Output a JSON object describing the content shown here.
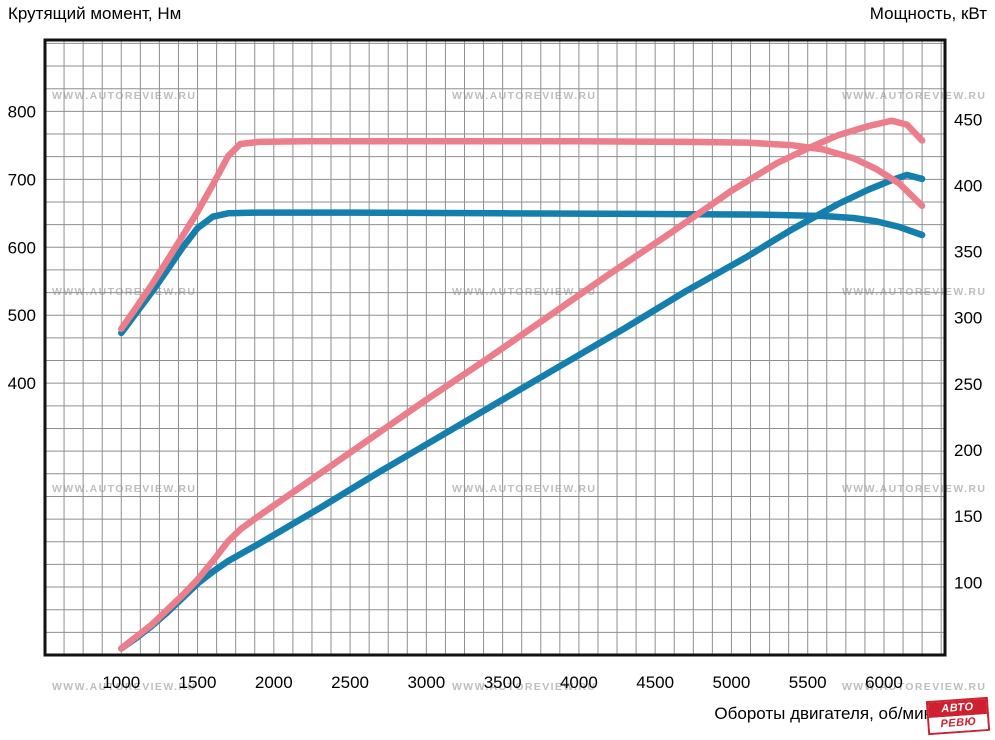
{
  "watermark": "WWW.AUTOREVIEW.RU",
  "logo": {
    "line1": "АВТО",
    "line2": "РЕВЮ"
  },
  "colors": {
    "pink": "#ec7e8c",
    "blue": "#147fad",
    "grid": "#8f8f8f",
    "frame": "#111111",
    "text": "#000000"
  },
  "chart_data": {
    "type": "line",
    "title": "",
    "x_axis": {
      "label": "Обороты двигателя, об/мин",
      "ticks": [
        1000,
        1500,
        2000,
        2500,
        3000,
        3500,
        4000,
        4500,
        5000,
        5500,
        6000
      ],
      "range": [
        500,
        6400
      ],
      "grid_step": 125
    },
    "y_left": {
      "label": "Крутящий момент, Нм",
      "ticks": [
        400,
        500,
        600,
        700,
        800
      ],
      "range": [
        0,
        905
      ],
      "grid_step": 33.333
    },
    "y_right": {
      "label": "Мощность, кВт",
      "ticks": [
        100,
        150,
        200,
        250,
        300,
        350,
        400,
        450
      ],
      "range": [
        45,
        510
      ]
    },
    "grid": true,
    "legend": "none",
    "series": [
      {
        "name": "torque-blue",
        "axis": "left",
        "color": "blue",
        "points": [
          [
            1000,
            474
          ],
          [
            1100,
            504
          ],
          [
            1200,
            534
          ],
          [
            1300,
            566
          ],
          [
            1400,
            599
          ],
          [
            1500,
            628
          ],
          [
            1600,
            645
          ],
          [
            1700,
            650
          ],
          [
            1900,
            651
          ],
          [
            2500,
            651
          ],
          [
            3500,
            650
          ],
          [
            4500,
            649
          ],
          [
            5200,
            648
          ],
          [
            5600,
            646
          ],
          [
            5800,
            643
          ],
          [
            5950,
            638
          ],
          [
            6100,
            630
          ],
          [
            6250,
            618
          ]
        ]
      },
      {
        "name": "power-blue",
        "axis": "right",
        "color": "blue",
        "points": [
          [
            1000,
            50
          ],
          [
            1100,
            58
          ],
          [
            1200,
            67
          ],
          [
            1300,
            77
          ],
          [
            1400,
            88
          ],
          [
            1500,
            99
          ],
          [
            1600,
            108
          ],
          [
            1700,
            116
          ],
          [
            1900,
            129
          ],
          [
            2300,
            156
          ],
          [
            2700,
            184
          ],
          [
            3100,
            211
          ],
          [
            3500,
            238
          ],
          [
            3900,
            265
          ],
          [
            4300,
            292
          ],
          [
            4700,
            320
          ],
          [
            5100,
            346
          ],
          [
            5400,
            367
          ],
          [
            5700,
            386
          ],
          [
            5900,
            397
          ],
          [
            6050,
            404
          ],
          [
            6150,
            408
          ],
          [
            6250,
            405
          ]
        ]
      },
      {
        "name": "torque-red",
        "axis": "left",
        "color": "pink",
        "points": [
          [
            1000,
            480
          ],
          [
            1100,
            512
          ],
          [
            1200,
            545
          ],
          [
            1300,
            580
          ],
          [
            1400,
            616
          ],
          [
            1500,
            652
          ],
          [
            1600,
            692
          ],
          [
            1700,
            734
          ],
          [
            1780,
            752
          ],
          [
            1900,
            755
          ],
          [
            2200,
            756
          ],
          [
            3000,
            756
          ],
          [
            4000,
            756
          ],
          [
            4700,
            755
          ],
          [
            5100,
            754
          ],
          [
            5400,
            750
          ],
          [
            5600,
            744
          ],
          [
            5800,
            731
          ],
          [
            5950,
            715
          ],
          [
            6100,
            694
          ],
          [
            6250,
            661
          ]
        ]
      },
      {
        "name": "power-red",
        "axis": "right",
        "color": "pink",
        "points": [
          [
            1000,
            50
          ],
          [
            1100,
            59
          ],
          [
            1200,
            68
          ],
          [
            1300,
            79
          ],
          [
            1400,
            90
          ],
          [
            1500,
            102
          ],
          [
            1600,
            116
          ],
          [
            1700,
            131
          ],
          [
            1780,
            140
          ],
          [
            1900,
            150
          ],
          [
            2200,
            174
          ],
          [
            2600,
            206
          ],
          [
            3000,
            238
          ],
          [
            3400,
            269
          ],
          [
            3800,
            301
          ],
          [
            4200,
            333
          ],
          [
            4600,
            364
          ],
          [
            5000,
            396
          ],
          [
            5300,
            417
          ],
          [
            5500,
            428
          ],
          [
            5700,
            438
          ],
          [
            5900,
            445
          ],
          [
            6050,
            449
          ],
          [
            6150,
            446
          ],
          [
            6250,
            434
          ]
        ]
      }
    ]
  }
}
